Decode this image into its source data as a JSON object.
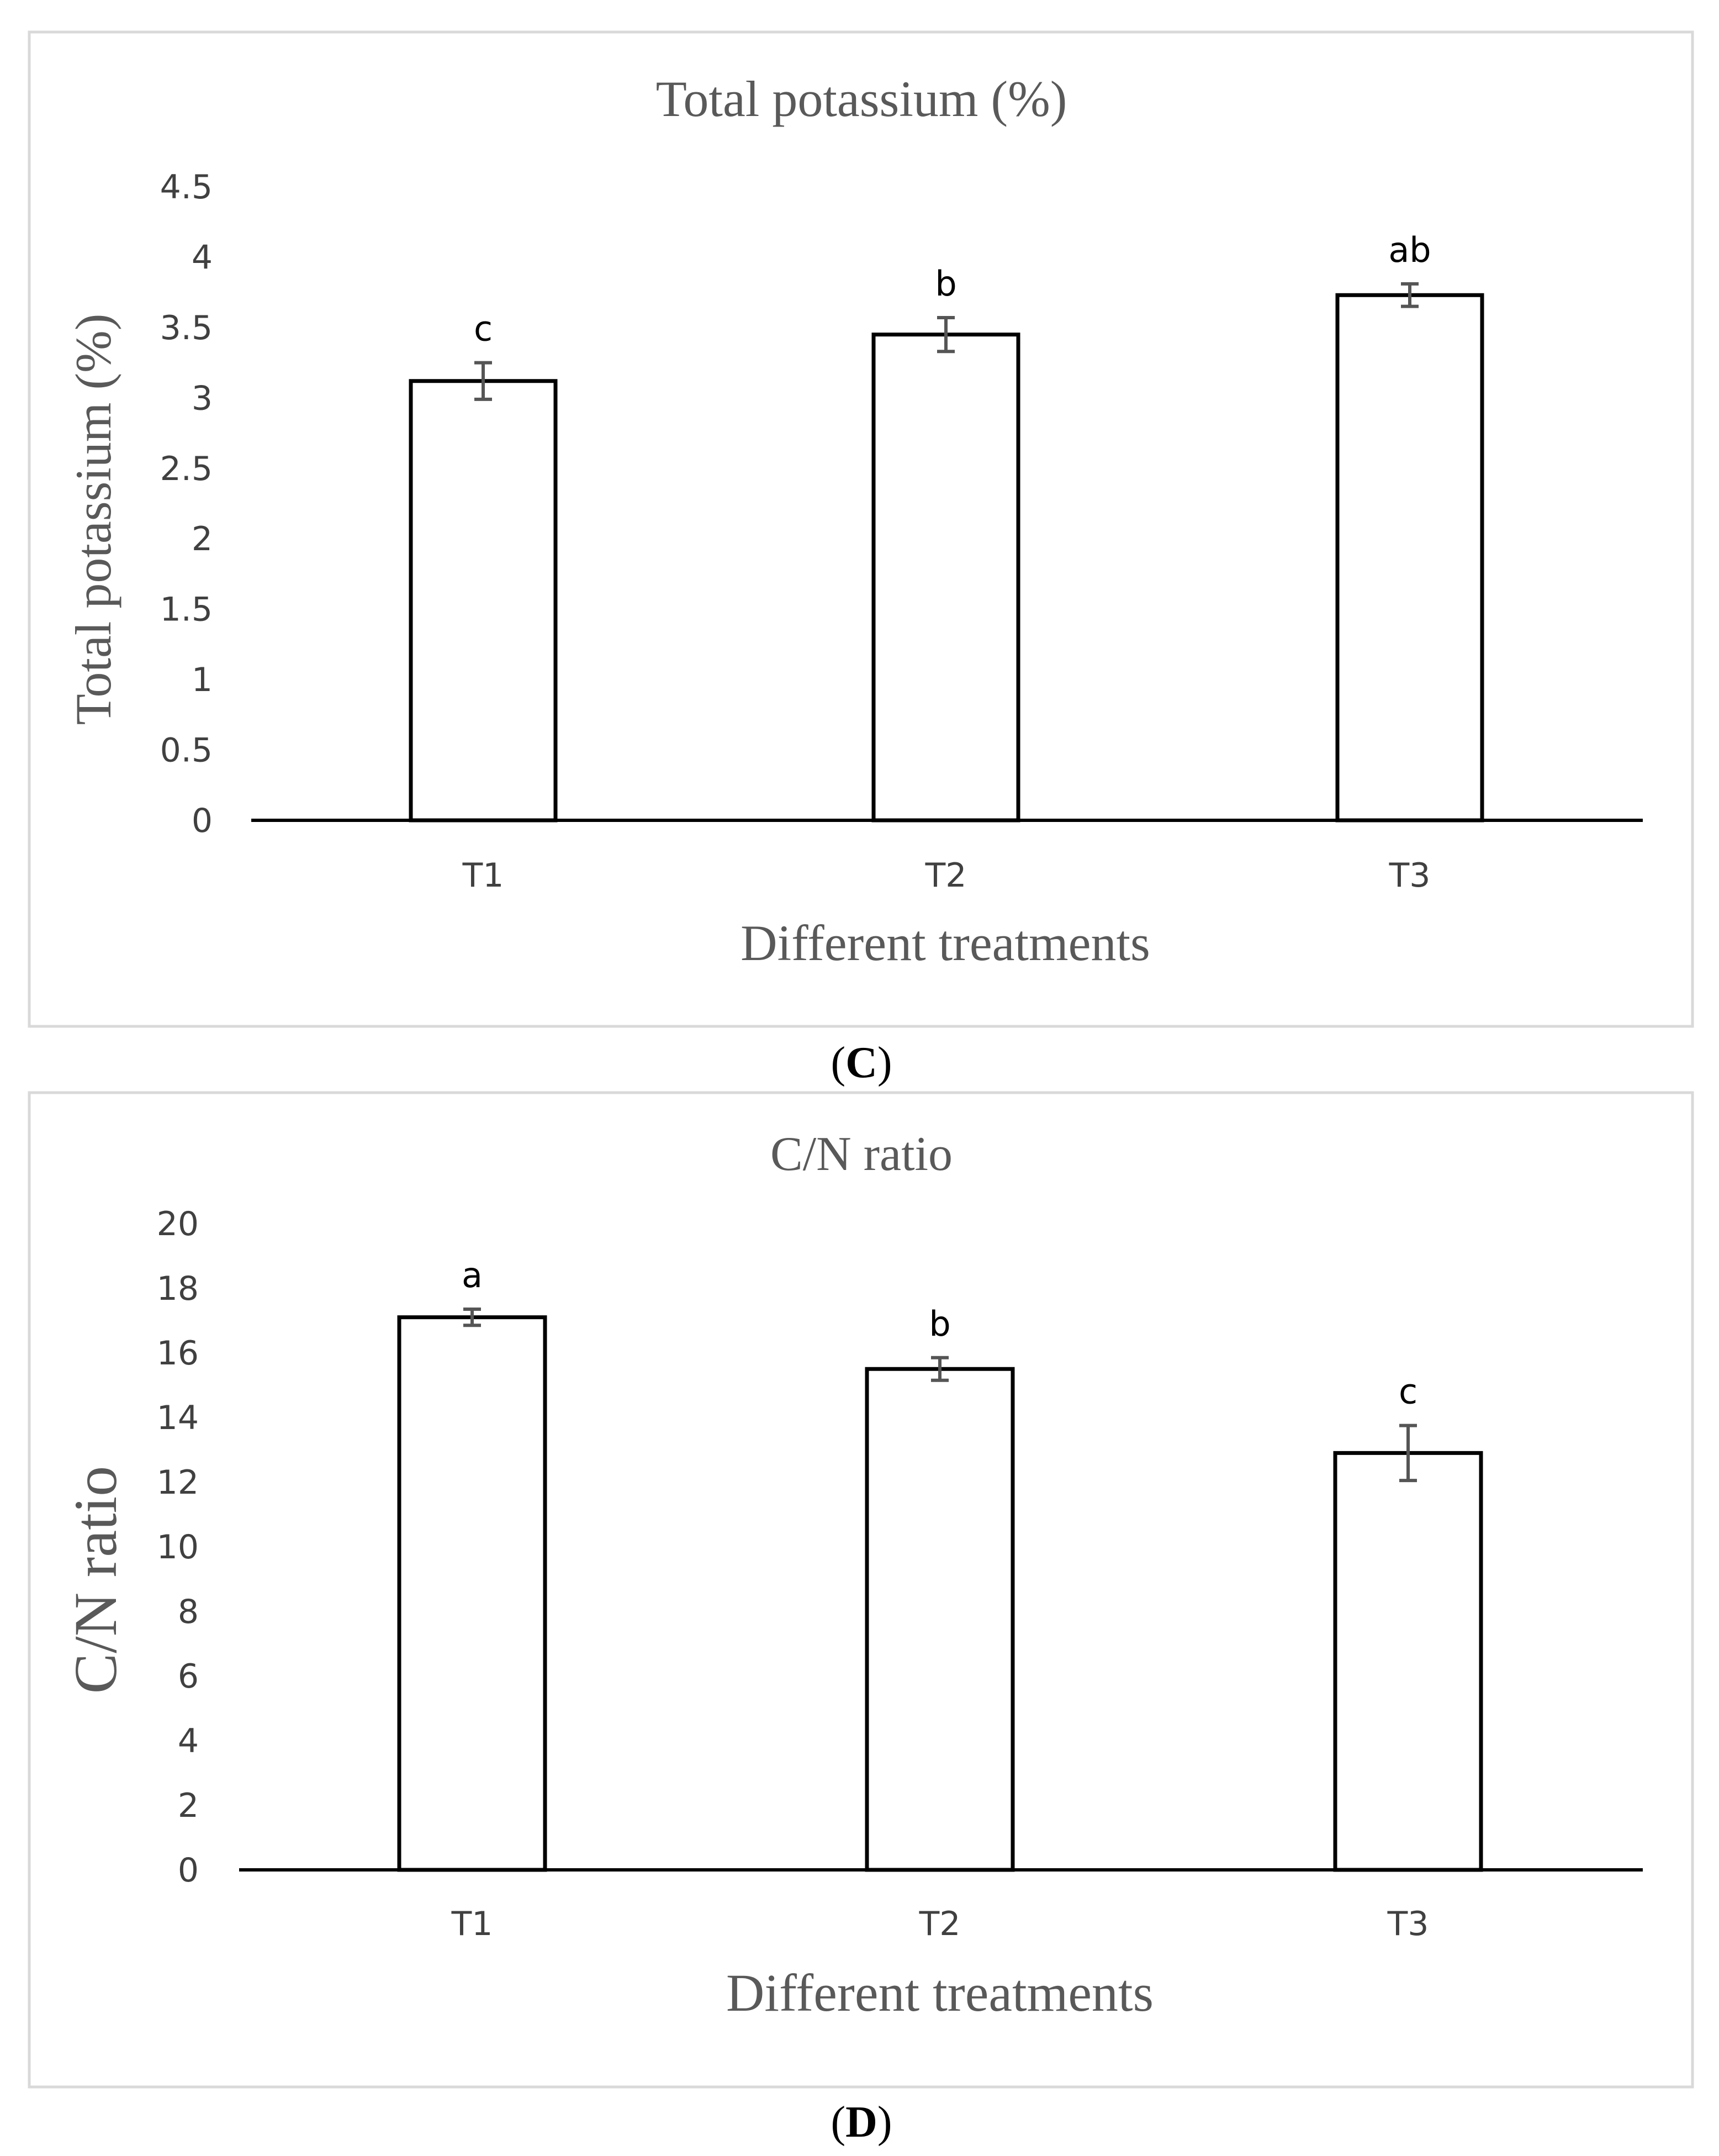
{
  "figure_captions": {
    "C_prefix": "(",
    "C_letter": "C",
    "C_suffix": ")",
    "D_prefix": "(",
    "D_letter": "D",
    "D_suffix": ")"
  },
  "chart_data": [
    {
      "id": "C",
      "type": "bar",
      "title": "Total potassium (%)",
      "xlabel": "Different treatments",
      "ylabel": "Total potassium (%)",
      "categories": [
        "T1",
        "T2",
        "T3"
      ],
      "values": [
        3.12,
        3.45,
        3.73
      ],
      "errors": [
        0.13,
        0.12,
        0.08
      ],
      "significance": [
        "c",
        "b",
        "ab"
      ],
      "ylim": [
        0,
        4.5
      ],
      "yticks": [
        0,
        0.5,
        1,
        1.5,
        2,
        2.5,
        3,
        3.5,
        4,
        4.5
      ],
      "ytick_labels": [
        "0",
        "0.5",
        "1",
        "1.5",
        "2",
        "2.5",
        "3",
        "3.5",
        "4",
        "4.5"
      ],
      "grid": false,
      "legend": "none"
    },
    {
      "id": "D",
      "type": "bar",
      "title": "C/N ratio",
      "xlabel": "Different treatments",
      "ylabel": "C/N ratio",
      "categories": [
        "T1",
        "T2",
        "T3"
      ],
      "values": [
        17.1,
        15.5,
        12.9
      ],
      "errors": [
        0.25,
        0.35,
        0.85
      ],
      "significance": [
        "a",
        "b",
        "c"
      ],
      "ylim": [
        0,
        20
      ],
      "yticks": [
        0,
        2,
        4,
        6,
        8,
        10,
        12,
        14,
        16,
        18,
        20
      ],
      "ytick_labels": [
        "0",
        "2",
        "4",
        "6",
        "8",
        "10",
        "12",
        "14",
        "16",
        "18",
        "20"
      ],
      "grid": false,
      "legend": "none"
    }
  ]
}
